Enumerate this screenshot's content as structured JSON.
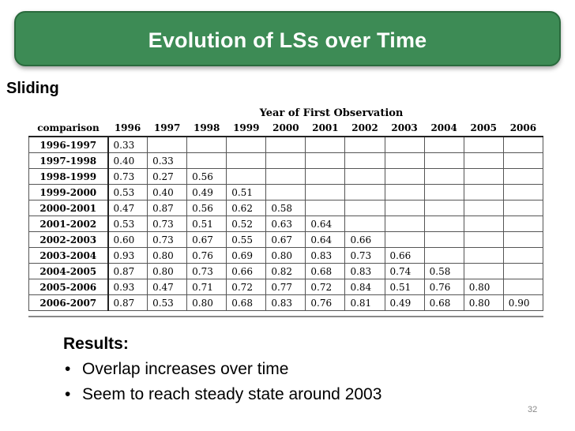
{
  "title": "Evolution of LSs over Time",
  "section_label": "Sliding",
  "table": {
    "caption": "Year of First Observation",
    "corner_header": "comparison",
    "columns": [
      "1996",
      "1997",
      "1998",
      "1999",
      "2000",
      "2001",
      "2002",
      "2003",
      "2004",
      "2005",
      "2006"
    ],
    "rows": [
      {
        "label": "1996-1997",
        "values": [
          "0.33",
          "",
          "",
          "",
          "",
          "",
          "",
          "",
          "",
          "",
          ""
        ]
      },
      {
        "label": "1997-1998",
        "values": [
          "0.40",
          "0.33",
          "",
          "",
          "",
          "",
          "",
          "",
          "",
          "",
          ""
        ]
      },
      {
        "label": "1998-1999",
        "values": [
          "0.73",
          "0.27",
          "0.56",
          "",
          "",
          "",
          "",
          "",
          "",
          "",
          ""
        ]
      },
      {
        "label": "1999-2000",
        "values": [
          "0.53",
          "0.40",
          "0.49",
          "0.51",
          "",
          "",
          "",
          "",
          "",
          "",
          ""
        ]
      },
      {
        "label": "2000-2001",
        "values": [
          "0.47",
          "0.87",
          "0.56",
          "0.62",
          "0.58",
          "",
          "",
          "",
          "",
          "",
          ""
        ]
      },
      {
        "label": "2001-2002",
        "values": [
          "0.53",
          "0.73",
          "0.51",
          "0.52",
          "0.63",
          "0.64",
          "",
          "",
          "",
          "",
          ""
        ]
      },
      {
        "label": "2002-2003",
        "values": [
          "0.60",
          "0.73",
          "0.67",
          "0.55",
          "0.67",
          "0.64",
          "0.66",
          "",
          "",
          "",
          ""
        ]
      },
      {
        "label": "2003-2004",
        "values": [
          "0.93",
          "0.80",
          "0.76",
          "0.69",
          "0.80",
          "0.83",
          "0.73",
          "0.66",
          "",
          "",
          ""
        ]
      },
      {
        "label": "2004-2005",
        "values": [
          "0.87",
          "0.80",
          "0.73",
          "0.66",
          "0.82",
          "0.68",
          "0.83",
          "0.74",
          "0.58",
          "",
          ""
        ]
      },
      {
        "label": "2005-2006",
        "values": [
          "0.93",
          "0.47",
          "0.71",
          "0.72",
          "0.77",
          "0.72",
          "0.84",
          "0.51",
          "0.76",
          "0.80",
          ""
        ]
      },
      {
        "label": "2006-2007",
        "values": [
          "0.87",
          "0.53",
          "0.80",
          "0.68",
          "0.83",
          "0.76",
          "0.81",
          "0.49",
          "0.68",
          "0.80",
          "0.90"
        ]
      }
    ]
  },
  "results": {
    "heading": "Results:",
    "bullets": [
      "Overlap increases over time",
      "Seem to reach steady state around 2003"
    ]
  },
  "page_number": "32",
  "colors": {
    "banner": "#3d8b55",
    "banner_border": "#2a6a3d"
  }
}
